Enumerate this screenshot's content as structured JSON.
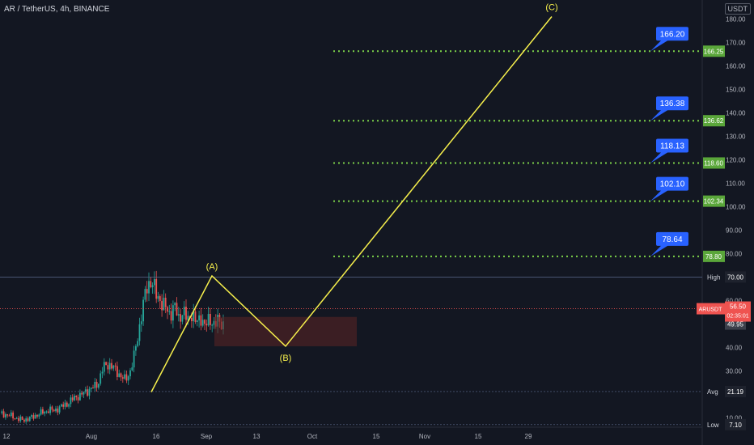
{
  "header": {
    "title": "AR / TetherUS, 4h, BINANCE",
    "currency_label": "USDT"
  },
  "colors": {
    "background": "#131722",
    "up": "#26a69a",
    "down": "#ef5350",
    "wave": "#f7f04c",
    "target": "#7cd24a",
    "callout": "#2962ff",
    "zone": "#5d2424",
    "high_line": "#2962ff",
    "price_line": "#ef5350"
  },
  "chart_data": {
    "type": "candlestick",
    "symbol": "ARUSDT",
    "x_ticks": [
      "12",
      "Aug",
      "16",
      "Sep",
      "13",
      "Oct",
      "15",
      "Nov",
      "15",
      "29"
    ],
    "y_ticks": [
      "10.00",
      "20.00",
      "30.00",
      "40.00",
      "50.00",
      "60.00",
      "70.00",
      "80.00",
      "90.00",
      "100.00",
      "110.00",
      "120.00",
      "130.00",
      "140.00",
      "150.00",
      "160.00",
      "170.00",
      "180.00"
    ],
    "ylim": [
      6,
      184
    ],
    "price_path": [
      [
        0,
        12
      ],
      [
        0.02,
        11.5
      ],
      [
        0.04,
        11
      ],
      [
        0.06,
        10.5
      ],
      [
        0.08,
        9.5
      ],
      [
        0.1,
        9
      ],
      [
        0.12,
        9.5
      ],
      [
        0.14,
        10
      ],
      [
        0.16,
        11
      ],
      [
        0.18,
        12
      ],
      [
        0.2,
        12.5
      ],
      [
        0.22,
        13.5
      ],
      [
        0.24,
        13
      ],
      [
        0.26,
        14
      ],
      [
        0.28,
        15
      ],
      [
        0.3,
        16
      ],
      [
        0.32,
        17.5
      ],
      [
        0.34,
        19
      ],
      [
        0.36,
        19.5
      ],
      [
        0.38,
        21
      ],
      [
        0.4,
        22
      ],
      [
        0.42,
        23
      ],
      [
        0.44,
        25
      ],
      [
        0.46,
        31
      ],
      [
        0.48,
        33
      ],
      [
        0.5,
        32
      ],
      [
        0.52,
        30
      ],
      [
        0.54,
        28
      ],
      [
        0.56,
        26
      ],
      [
        0.58,
        29
      ],
      [
        0.6,
        36
      ],
      [
        0.62,
        46
      ],
      [
        0.64,
        58
      ],
      [
        0.66,
        66
      ],
      [
        0.68,
        69
      ],
      [
        0.7,
        62
      ],
      [
        0.72,
        60
      ],
      [
        0.74,
        57
      ],
      [
        0.76,
        54
      ],
      [
        0.78,
        58
      ],
      [
        0.8,
        52
      ],
      [
        0.82,
        56
      ],
      [
        0.84,
        51
      ],
      [
        0.86,
        55
      ],
      [
        0.88,
        50
      ],
      [
        0.9,
        53
      ],
      [
        0.92,
        49
      ],
      [
        0.94,
        52
      ],
      [
        0.96,
        50
      ],
      [
        0.98,
        51
      ],
      [
        1,
        50
      ]
    ],
    "wave": {
      "points": [
        {
          "label": "",
          "price": 21
        },
        {
          "label": "(A)",
          "price": 70.5
        },
        {
          "label": "(B)",
          "price": 40.5
        },
        {
          "label": "(C)",
          "price": 181
        }
      ]
    },
    "zone": {
      "top": 53,
      "bottom": 40.5
    },
    "targets": [
      {
        "callout": "166.20",
        "axis_label": "166.25",
        "price": 166.25
      },
      {
        "callout": "136.38",
        "axis_label": "136.62",
        "price": 136.62
      },
      {
        "callout": "118.13",
        "axis_label": "118.60",
        "price": 118.6
      },
      {
        "callout": "102.10",
        "axis_label": "102.34",
        "price": 102.34
      },
      {
        "callout": "78.64",
        "axis_label": "78.80",
        "price": 78.8
      }
    ],
    "levels": {
      "high": {
        "label": "High",
        "value": "70.00",
        "price": 70
      },
      "current": {
        "label": "ARUSDT",
        "value": "56.50",
        "countdown": "02:35:01",
        "price": 56.5
      },
      "marker": {
        "value": "49.95",
        "price": 49.95
      },
      "avg": {
        "label": "Avg",
        "value": "21.19",
        "price": 21.19
      },
      "low": {
        "label": "Low",
        "value": "7.10",
        "price": 7.1
      }
    }
  }
}
